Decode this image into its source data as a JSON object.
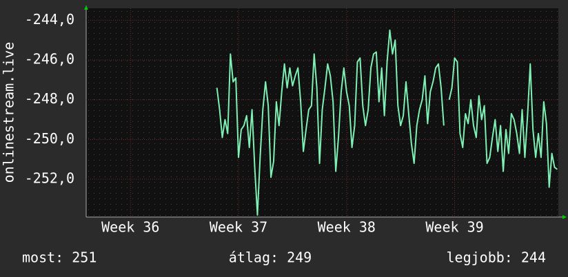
{
  "chart_data": {
    "type": "line",
    "ylabel": "onlinestream.live",
    "x": [
      36.8,
      36.825,
      36.85,
      36.875,
      36.9,
      36.925,
      36.95,
      36.975,
      37,
      37.025,
      37.05,
      37.075,
      37.1,
      37.125,
      37.15,
      37.175,
      37.2,
      37.225,
      37.25,
      37.275,
      37.3,
      37.325,
      37.35,
      37.375,
      37.4,
      37.425,
      37.45,
      37.475,
      37.5,
      37.525,
      37.55,
      37.575,
      37.6,
      37.625,
      37.65,
      37.675,
      37.7,
      37.725,
      37.75,
      37.775,
      37.8,
      37.825,
      37.85,
      37.875,
      37.9,
      37.925,
      37.95,
      37.975,
      38,
      38.025,
      38.05,
      38.075,
      38.1,
      38.125,
      38.15,
      38.175,
      38.2,
      38.225,
      38.25,
      38.275,
      38.3,
      38.325,
      38.35,
      38.375,
      38.4,
      38.425,
      38.45,
      38.475,
      38.5,
      38.525,
      38.55,
      38.575,
      38.6,
      38.625,
      38.65,
      38.675,
      38.7,
      38.725,
      38.75,
      38.775,
      38.8,
      38.825,
      38.85,
      38.875,
      38.9,
      38.925,
      38.95,
      38.975,
      39,
      39.025,
      39.05,
      39.075,
      39.1,
      39.125,
      39.15,
      39.175,
      39.2,
      39.225,
      39.25,
      39.275,
      39.3,
      39.325,
      39.35,
      39.375,
      39.4,
      39.425,
      39.45,
      39.475,
      39.5,
      39.525,
      39.55,
      39.575,
      39.6,
      39.625,
      39.65,
      39.675,
      39.7,
      39.725,
      39.75,
      39.775,
      39.8,
      39.825,
      39.85,
      39.875,
      39.9,
      39.925,
      39.95
    ],
    "series": [
      {
        "color": "#7ff0b4",
        "values": [
          -247.4,
          -248.5,
          -249.9,
          -249.0,
          -249.7,
          -245.7,
          -247.1,
          -246.9,
          -250.9,
          -249.5,
          -249.3,
          -248.8,
          -250.4,
          -248.5,
          -251.4,
          -253.8,
          -250.9,
          -248.5,
          -247.1,
          -248.3,
          -251.9,
          -251.1,
          -248.1,
          -249.3,
          -247.6,
          -246.2,
          -247.4,
          -246.4,
          -247.3,
          -246.8,
          -246.4,
          -248.1,
          -250.6,
          -249.5,
          -248.5,
          -248.3,
          -245.7,
          -247.4,
          -251.2,
          -248.5,
          -247.4,
          -246.2,
          -246.8,
          -248.1,
          -251.6,
          -249.9,
          -247.6,
          -246.4,
          -247.6,
          -248.3,
          -250.4,
          -249.3,
          -246.1,
          -245.9,
          -248.3,
          -249.3,
          -248.5,
          -246.4,
          -245.7,
          -245.6,
          -248.1,
          -246.4,
          -248.8,
          -246.1,
          -244.5,
          -245.7,
          -245.0,
          -248.3,
          -249.3,
          -248.8,
          -247.1,
          -248.7,
          -250.2,
          -251.2,
          -249.3,
          -248.5,
          -248.0,
          -246.8,
          -249.2,
          -247.6,
          -247.1,
          -246.4,
          -246.2,
          -247.4,
          -249.3,
          null,
          -248.0,
          -247.4,
          -245.9,
          -246.1,
          -249.7,
          -250.4,
          -248.7,
          -249.2,
          -248.0,
          -249.3,
          -249.9,
          -247.8,
          -249.0,
          -248.3,
          -251.2,
          -250.9,
          -249.9,
          -249.0,
          -250.6,
          -249.3,
          -251.6,
          -249.5,
          -250.7,
          -248.7,
          -249.0,
          -249.7,
          -250.7,
          -248.5,
          -250.9,
          -248.8,
          -246.2,
          -249.5,
          -250.9,
          -249.7,
          -250.9,
          -248.1,
          -249.2,
          -252.4,
          -250.7,
          -251.4,
          -251.5
        ]
      }
    ],
    "xlim": [
      35.59,
      39.96
    ],
    "xticks": [
      {
        "value": 36,
        "label": "Week 36"
      },
      {
        "value": 37,
        "label": "Week 37"
      },
      {
        "value": 38,
        "label": "Week 38"
      },
      {
        "value": 39,
        "label": "Week 39"
      }
    ],
    "ylim": [
      -253.9,
      -243.4
    ],
    "yticks": [
      {
        "value": -244,
        "label": "-244,0"
      },
      {
        "value": -246,
        "label": "-246,0"
      },
      {
        "value": -248,
        "label": "-248,0"
      },
      {
        "value": -250,
        "label": "-250,0"
      },
      {
        "value": -252,
        "label": "-252,0"
      }
    ],
    "grid": true,
    "footer": [
      "most: 251",
      "átlag: 249",
      "legjobb: 244"
    ]
  }
}
